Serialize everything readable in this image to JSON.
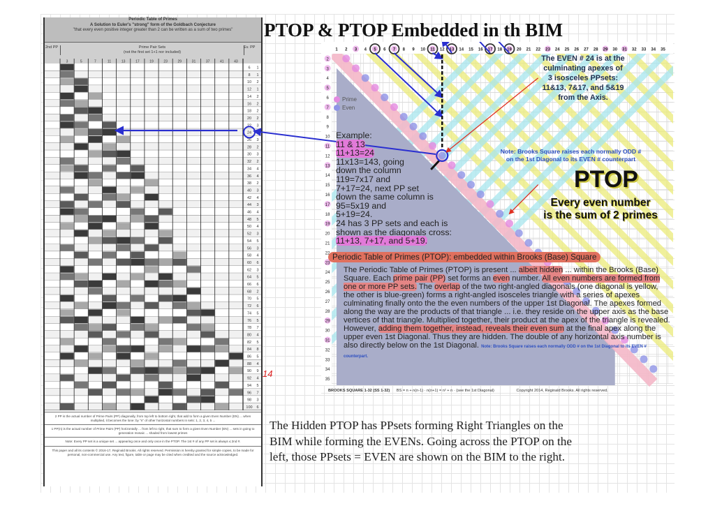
{
  "title": "PTOP & PTOP Embedded in th BIM",
  "left_table": {
    "header": {
      "line1": "Periodic Table of Primes",
      "line2": "A Solution to Euler's \"strong\" form of the Goldbach Conjecture",
      "line3": "\"that every even positive integer greater than 2 can be written as a sum of two primes\""
    },
    "sub_left": "2nd PP",
    "sub_center_1": "Prime Pair Sets",
    "sub_center_2": "(not the first set 1+1 nor included)",
    "sub_right": "Ev. PP",
    "column_primes": [
      3,
      5,
      7,
      11,
      13,
      17,
      19,
      23,
      29,
      31,
      37,
      41,
      43
    ],
    "evens": [
      6,
      8,
      10,
      12,
      14,
      16,
      18,
      20,
      22,
      24,
      26,
      28,
      30,
      32,
      34,
      36,
      38,
      40,
      42,
      44,
      46,
      48,
      50,
      52,
      54,
      56,
      58,
      60,
      62,
      64,
      66,
      68,
      70,
      72,
      74,
      76,
      78,
      80,
      82,
      84,
      86,
      88,
      90,
      92,
      94,
      96,
      98,
      100
    ],
    "pp_counts": [
      1,
      1,
      2,
      1,
      2,
      2,
      2,
      2,
      3,
      3,
      3,
      2,
      3,
      2,
      4,
      4,
      2,
      3,
      4,
      3,
      4,
      5,
      4,
      3,
      5,
      3,
      4,
      6,
      3,
      5,
      6,
      2,
      5,
      6,
      5,
      5,
      7,
      4,
      5,
      8,
      5,
      4,
      9,
      4,
      5,
      7,
      3,
      6
    ],
    "highlighted_even": 24,
    "handwritten_mark": "14",
    "footnotes": [
      "2 PP is the actual number of Prime Pairs (PP) diagonally, from top left to bottom right, that add to form a given Even Number (EN) ... when multiplied, it becomes the lone: by \"n\" of other horizontal numbers in sets: 1, 2, 3, 4, 5 ...",
      "1 PP(n) is the actual number of Prime Pairs (PP) horizontally ... from left to right, that sum to form a given Even Number (EN) ... sets in going to generation mosaic ... shaded from lowest primes",
      "Note: Every PP set is a unique set ... appearing once and only once in the PTOP. The 1st # of any PP set is always ≤ 2nd #.",
      "This paper and all its contents © 2016-17, Reginald Brooks. All rights reserved. Permission is hereby granted for simple copies, to be made for personal, non-commercial use. Any text, figure, table or page may be cited when credited and the source acknowledged."
    ]
  },
  "bim": {
    "top_axis": [
      1,
      2,
      3,
      4,
      5,
      6,
      7,
      8,
      9,
      10,
      11,
      12,
      13,
      14,
      15,
      16,
      17,
      18,
      19,
      20,
      21,
      22,
      23,
      24,
      25,
      26,
      27,
      28,
      29,
      30,
      31,
      32,
      33,
      34,
      35
    ],
    "left_axis": [
      2,
      3,
      4,
      5,
      6,
      7,
      8,
      9,
      10,
      11,
      12,
      13,
      14,
      15,
      16,
      17,
      18,
      19,
      20,
      21,
      22,
      23,
      24,
      25,
      26,
      27,
      28,
      29,
      30,
      31,
      32,
      33,
      34,
      35
    ],
    "circled_axis_primes": [
      5,
      7,
      11,
      13,
      17,
      19
    ],
    "apex_even": 24,
    "legend": {
      "prime": "Prime",
      "even": "Even"
    },
    "colors": {
      "prime": "#e38ae0",
      "even": "#8f94e6",
      "pink_band": "#f4b8c8",
      "yellow": "#ecec7a",
      "cyan": "#a8e6ee",
      "triangle": "#a9adc9",
      "arrow": "#2a2fd0"
    },
    "example": [
      "Example:",
      "11 & 13",
      "11+13=24",
      "11x13=143, going",
      "down the column",
      "119=7x17 and",
      "7+17=24, next PP set",
      "down the same column is",
      "95=5x19 and",
      "5+19=24.",
      "24 has 3 PP sets and each is",
      "shown as the diagonals cross:",
      "11+13,  7+17, and 5+19."
    ],
    "even_note": [
      "The EVEN # 24 is at the",
      "culminating apexes of",
      "3 isosceles PPsets:",
      "11&13, 7&17, and 5&19",
      "from the Axis."
    ],
    "brooks_note": [
      "Note: Brooks Square raises each normally ODD #",
      "on the 1st Diagonal to its EVEN # counterpart"
    ],
    "ptop_big": "PTOP",
    "every_even": [
      "Every even number",
      "is the sum of 2 primes"
    ],
    "panel_title": "Periodic Table of Primes (PTOP): embedded within Brooks (Base) Square",
    "panel_text": {
      "p1": "The Periodic Table of Primes (PTOP) is present ... ",
      "h1": "albeit hidden",
      "p2": " ... within the Brooks (Base) Square. Each ",
      "h2": "prime pair (PP)",
      "p3": " set forms an ",
      "h3": "even",
      "p4": " number. ",
      "h4": "All even numbers are formed from one or more PP sets.",
      "p5": " The ",
      "h5": "overlap",
      "p6": " of the two right-angled diagonals (one diagonal is yellow, the other is blue-green) forms a right-angled isosceles triangle with a series of apexes culminating finally onto the the even numbers of the upper 1st Diagonal. The apexes formed along the way are the products of that triangle ... i.e. they reside on the upper axis as the base vertices of that triangle. Multiplied together, their product at the apex of the triangle is revealed. However, ",
      "h6": "adding them together, instead, reveals their even sum",
      "p7": " at the final apex along the upper even 1st Diagonal. Thus they are hidden. The double of any horizontal axis number is also directly below on the 1st Diagonal. ",
      "note": "Note: Brooks Square raises each normally ODD # on the 1st Diagonal to its EVEN # counterpart."
    },
    "footer_left": "BROOKS SQUARE 1-32 (SS 1-32)",
    "footer_mid": "BS = n + n(n-1)  ·  n(n+1) = n² + n  ·  (see the 1st Diagonal)",
    "footer_right": "Copyright 2014, Reginald Brooks. All rights reserved."
  },
  "caption": [
    "The Hidden PTOP has PPsets forming Right Triangles on the",
    "BIM while forming the EVENs. Going across the PTOP on the",
    "left, those PPsets = EVEN are shown on the BIM to the right."
  ]
}
